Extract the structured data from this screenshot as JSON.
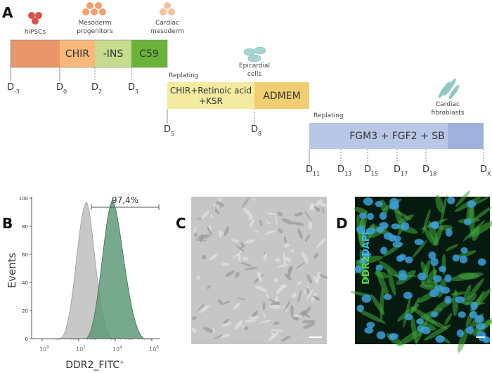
{
  "panel_a": {
    "label": "A",
    "cells": [
      {
        "lines": [
          "hiPSCs"
        ]
      },
      {
        "lines": [
          "Mesoderm",
          "progenitors"
        ]
      },
      {
        "lines": [
          "Cardiac",
          "mesoderm"
        ]
      },
      {
        "lines": [
          "Epicardial",
          "cells"
        ]
      },
      {
        "lines": [
          "Cardiac",
          "fibroblasts"
        ]
      }
    ],
    "stage1": [
      "CHIR",
      "-INS",
      "C59"
    ],
    "stage2": {
      "lines": [
        "CHIR+Retinoic acid",
        "+KSR"
      ],
      "medium": "ADMEM"
    },
    "stage3": "FGM3 + FGF2 + SB",
    "replating": [
      "Replating",
      "Replating"
    ],
    "days": [
      {
        "letter": "D",
        "sub": "-3"
      },
      {
        "letter": "D",
        "sub": "0"
      },
      {
        "letter": "D",
        "sub": "2"
      },
      {
        "letter": "D",
        "sub": "3"
      },
      {
        "letter": "D",
        "sub": "5"
      },
      {
        "letter": "D",
        "sub": "8"
      },
      {
        "letter": "D",
        "sub": "11"
      },
      {
        "letter": "D",
        "sub": "13"
      },
      {
        "letter": "D",
        "sub": "15"
      },
      {
        "letter": "D",
        "sub": "17"
      },
      {
        "letter": "D",
        "sub": "18"
      },
      {
        "letter": "D",
        "sub": "X"
      }
    ]
  },
  "panel_b": {
    "label": "B",
    "y_label": "Events",
    "yticks": [
      0,
      20,
      40,
      60,
      80,
      100
    ],
    "ylim": [
      0,
      100
    ],
    "xticks": [
      {
        "base": "10",
        "exp": "0"
      },
      {
        "base": "10",
        "exp": "2"
      },
      {
        "base": "10",
        "exp": "4"
      },
      {
        "base": "10",
        "exp": "6"
      }
    ],
    "x_label": {
      "text": "DDR2_FITC",
      "sup": "+"
    },
    "gate": "97,4%"
  },
  "panel_c": {
    "label": "C"
  },
  "panel_d": {
    "label": "D",
    "stain1": "DDR2",
    "stain2": "DAPI"
  }
}
